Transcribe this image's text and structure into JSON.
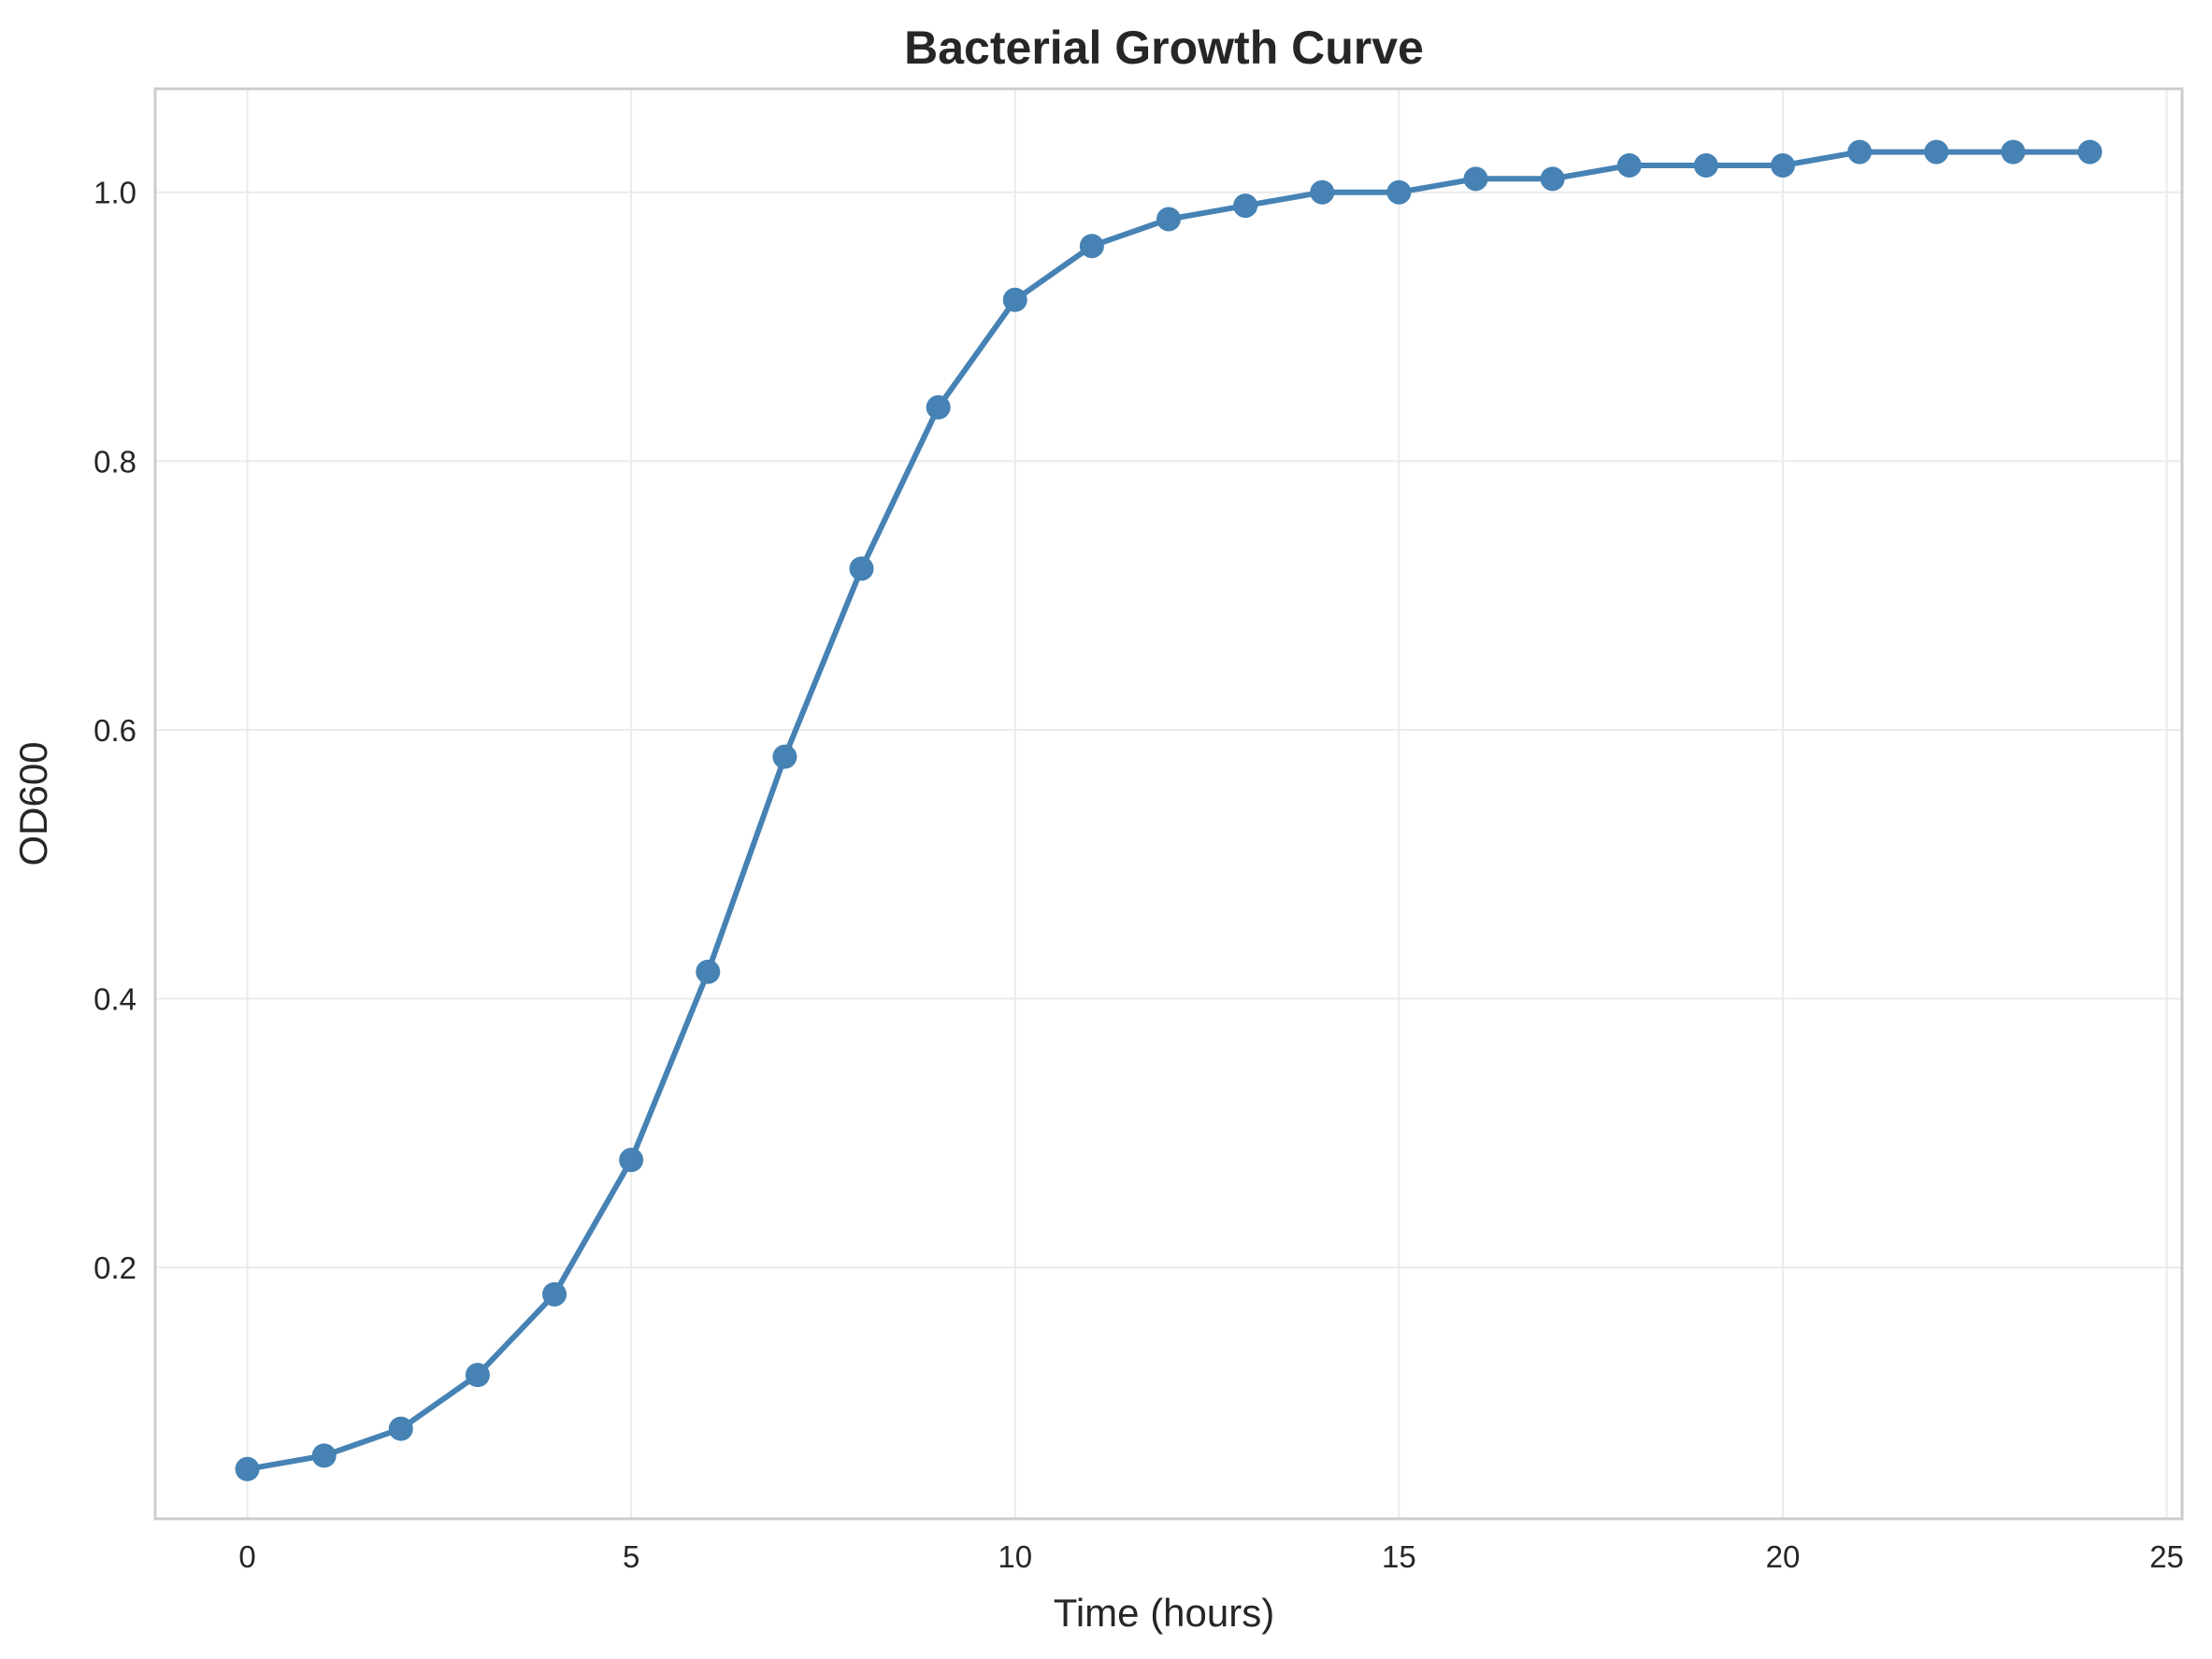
{
  "chart_data": {
    "type": "line",
    "title": "Bacterial Growth Curve",
    "xlabel": "Time (hours)",
    "ylabel": "OD600",
    "xlim": [
      -1.2,
      25.2
    ],
    "ylim": [
      0.013,
      1.077
    ],
    "xticks": [
      0,
      5,
      10,
      15,
      20,
      25
    ],
    "yticks": [
      0.2,
      0.4,
      0.6,
      0.8,
      1.0
    ],
    "xtick_labels": [
      "0",
      "5",
      "10",
      "15",
      "20",
      "25"
    ],
    "ytick_labels": [
      "0.2",
      "0.4",
      "0.6",
      "0.8",
      "1.0"
    ],
    "grid": true,
    "line_color": "#4682b4",
    "series": [
      {
        "x": [
          0,
          1,
          2,
          3,
          4,
          5,
          6,
          7,
          8,
          9,
          10,
          11,
          12,
          13,
          14,
          15,
          16,
          17,
          18,
          19,
          20,
          21,
          22,
          23,
          24
        ],
        "values": [
          0.05,
          0.06,
          0.08,
          0.12,
          0.18,
          0.28,
          0.42,
          0.58,
          0.72,
          0.84,
          0.92,
          0.96,
          0.98,
          0.99,
          1.0,
          1.0,
          1.01,
          1.01,
          1.02,
          1.02,
          1.02,
          1.03,
          1.03,
          1.03,
          1.03
        ]
      }
    ]
  }
}
